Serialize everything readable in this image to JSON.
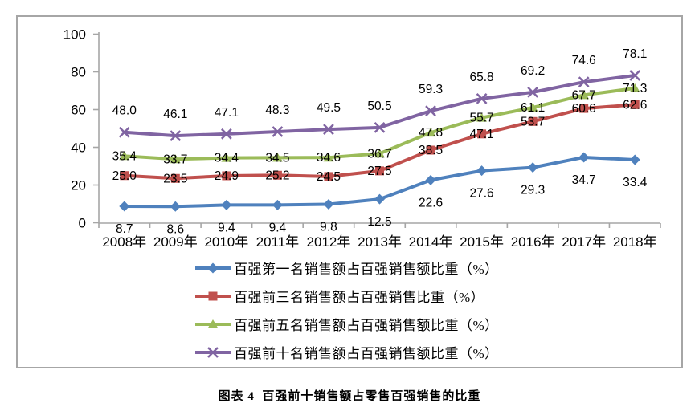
{
  "chart_data": {
    "type": "line",
    "title": "",
    "categories": [
      "2008年",
      "2009年",
      "2010年",
      "2011年",
      "2012年",
      "2013年",
      "2014年",
      "2015年",
      "2016年",
      "2017年",
      "2018年"
    ],
    "series": [
      {
        "name": "百强第一名销售额占百强销售额比重（%）",
        "color": "#4F81BD",
        "marker": "diamond",
        "label_position": "below",
        "values": [
          8.7,
          8.6,
          9.4,
          9.4,
          9.8,
          12.5,
          22.6,
          27.6,
          29.3,
          34.7,
          33.4
        ]
      },
      {
        "name": "百强前三名销售额占百强销售比重（%）",
        "color": "#C0504D",
        "marker": "square",
        "label_position": "center",
        "values": [
          25.0,
          23.5,
          24.9,
          25.2,
          24.5,
          27.5,
          38.5,
          47.1,
          53.7,
          60.6,
          62.6
        ]
      },
      {
        "name": "百强前五名销售额占百强销售额比重（%）",
        "color": "#9BBB59",
        "marker": "triangle",
        "label_position": "center",
        "values": [
          35.4,
          33.7,
          34.4,
          34.5,
          34.6,
          36.7,
          47.8,
          55.7,
          61.1,
          67.7,
          71.3
        ]
      },
      {
        "name": "百强前十名销售额占百强销售额比重（%）",
        "color": "#8064A2",
        "marker": "x",
        "label_position": "above",
        "values": [
          48.0,
          46.1,
          47.1,
          48.3,
          49.5,
          50.5,
          59.3,
          65.8,
          69.2,
          74.6,
          78.1
        ]
      }
    ],
    "ylim": [
      0,
      100
    ],
    "yticks": [
      0,
      20,
      40,
      60,
      80,
      100
    ],
    "grid": false,
    "legend_position": "bottom",
    "axis_color": "#A6A6A6",
    "text_color": "#000000",
    "label_decimals": 1
  },
  "caption": "图表 4  百强前十销售额占零售百强销售的比重"
}
